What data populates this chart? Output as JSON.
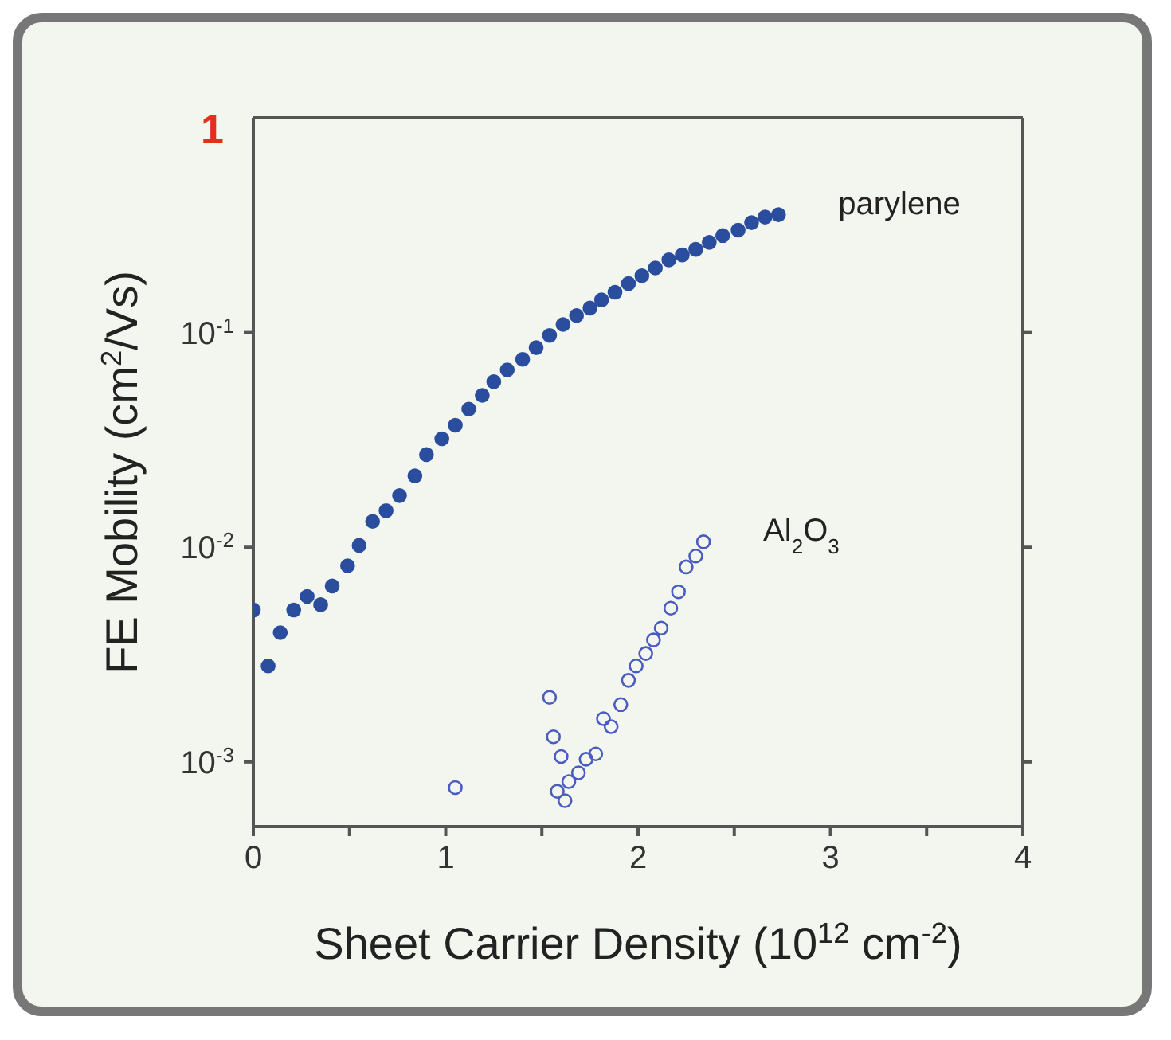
{
  "chart_data": {
    "type": "scatter",
    "xlabel": "Sheet Carrier Density (10$^{12}$ cm$^{-2}$)",
    "ylabel": "FE Mobility (cm$^{2}$/Vs)",
    "annotations": [
      "1"
    ],
    "log": "y",
    "legend": false,
    "marker": "circle",
    "xlim": [
      0,
      4
    ],
    "xticks": [
      0,
      {
        "value": 0.5,
        "label": null
      },
      1,
      {
        "value": 1.5,
        "label": null
      },
      2,
      {
        "value": 2.5,
        "label": null
      },
      3,
      {
        "value": 3.5,
        "label": null
      },
      4
    ],
    "ylim": [
      0.0005,
      1
    ],
    "yticks": [
      {
        "value": 0.1,
        "label": "10$^{-1}$"
      },
      {
        "value": 0.01,
        "label": "10$^{-2}$"
      },
      {
        "value": 0.001,
        "label": "10$^{-3}$"
      }
    ],
    "series": [
      {
        "name": "parylene",
        "color": "#2a4d9e",
        "x": [
          0.0,
          0.077,
          0.14,
          0.21,
          0.28,
          0.35,
          0.41,
          0.49,
          0.55,
          0.62,
          0.69,
          0.76,
          0.84,
          0.9,
          0.98,
          1.05,
          1.12,
          1.19,
          1.25,
          1.32,
          1.4,
          1.47,
          1.54,
          1.61,
          1.68,
          1.75,
          1.81,
          1.88,
          1.95,
          2.02,
          2.09,
          2.16,
          2.23,
          2.3,
          2.37,
          2.44,
          2.52,
          2.59,
          2.66,
          2.73
        ],
        "values": [
          0.0051,
          0.0028,
          0.004,
          0.0051,
          0.0059,
          0.0054,
          0.0066,
          0.0082,
          0.0102,
          0.0132,
          0.0148,
          0.0174,
          0.0215,
          0.027,
          0.032,
          0.037,
          0.044,
          0.051,
          0.059,
          0.067,
          0.075,
          0.085,
          0.097,
          0.109,
          0.12,
          0.13,
          0.142,
          0.154,
          0.169,
          0.184,
          0.2,
          0.218,
          0.23,
          0.244,
          0.263,
          0.283,
          0.3,
          0.325,
          0.345,
          0.354
        ]
      },
      {
        "name": "Al$_{2}$O$_{3}$",
        "color": "#4a5cc0",
        "x": [
          1.05,
          1.54,
          1.56,
          1.6,
          1.58,
          1.62,
          1.64,
          1.69,
          1.73,
          1.78,
          1.82,
          1.86,
          1.91,
          1.95,
          1.99,
          2.04,
          2.08,
          2.12,
          2.17,
          2.21,
          2.25,
          2.3,
          2.34
        ],
        "values": [
          0.00076,
          0.002,
          0.00131,
          0.00106,
          0.00073,
          0.00066,
          0.00081,
          0.00089,
          0.00103,
          0.00109,
          0.00159,
          0.00146,
          0.00185,
          0.0024,
          0.0028,
          0.0032,
          0.0037,
          0.0042,
          0.0052,
          0.0062,
          0.0081,
          0.0091,
          0.0106
        ]
      }
    ]
  }
}
